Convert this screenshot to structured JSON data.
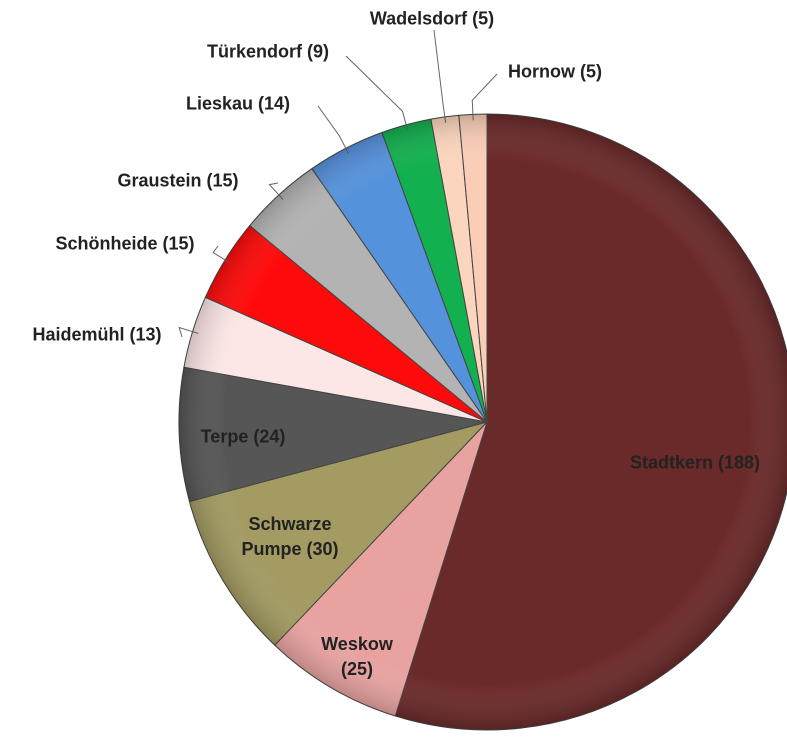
{
  "chart_data": {
    "type": "pie",
    "categories": [
      "Stadtkern (188)",
      "Weskow (25)",
      "Schwarze Pumpe (30)",
      "Terpe (24)",
      "Haidemühl (13)",
      "Schönheide (15)",
      "Graustein (15)",
      "Lieskau (14)",
      "Türkendorf (9)",
      "Wadelsdorf (5)",
      "Hornow (5)"
    ],
    "values": [
      188,
      25,
      30,
      24,
      13,
      15,
      15,
      14,
      9,
      5,
      5
    ],
    "colors": [
      "#6b2a2a",
      "#e8a3a1",
      "#a39b62",
      "#565656",
      "#fde6e6",
      "#ff0a0a",
      "#b3b3b3",
      "#5592dc",
      "#12b04e",
      "#fbd5bd",
      "#f9cdb6"
    ]
  }
}
